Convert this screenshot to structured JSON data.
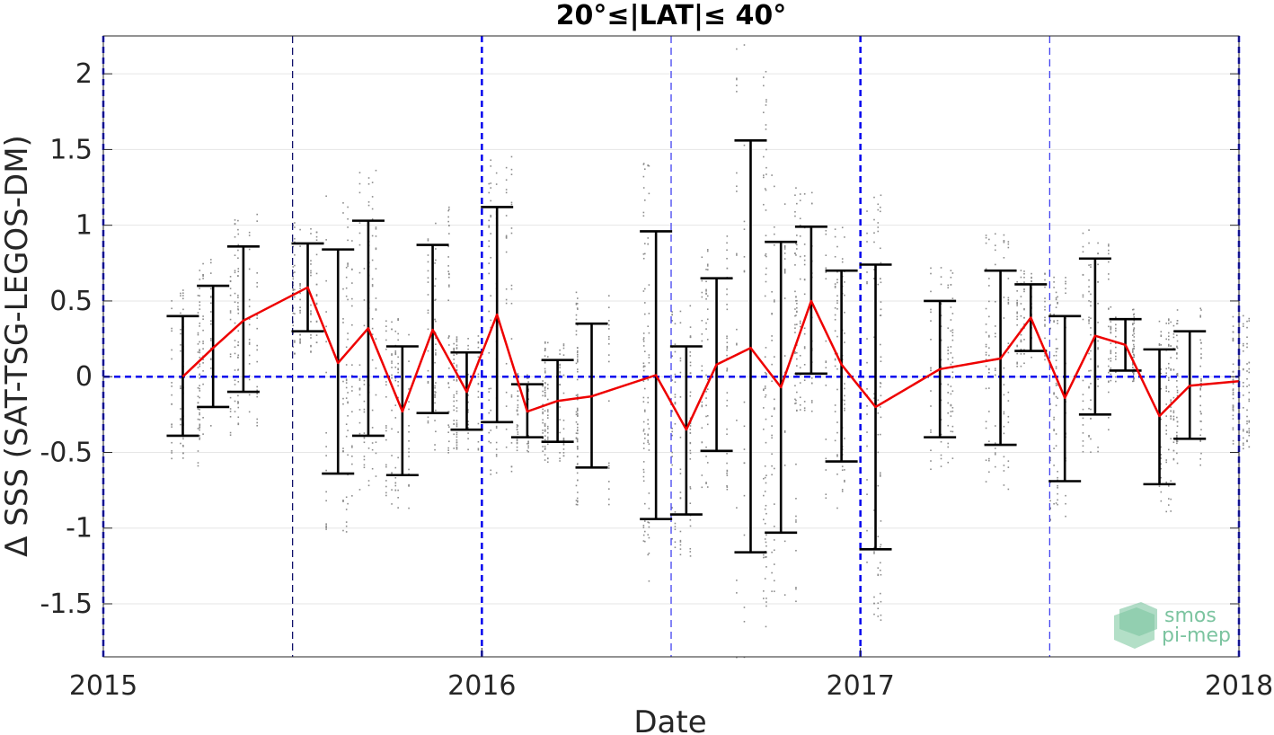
{
  "chart_data": {
    "type": "line",
    "title": "20°≤|LAT|≤ 40°",
    "xlabel": "Date",
    "ylabel": "Δ SSS (SAT-TSG-LEGOS-DM)",
    "xlim": [
      2015.0,
      2018.0
    ],
    "ylim": [
      -1.85,
      2.25
    ],
    "x_ticks": [
      {
        "value": 2015,
        "label": "2015"
      },
      {
        "value": 2016,
        "label": "2016"
      },
      {
        "value": 2017,
        "label": "2017"
      },
      {
        "value": 2018,
        "label": "2018"
      }
    ],
    "y_ticks": [
      {
        "value": 2,
        "label": "2"
      },
      {
        "value": 1.5,
        "label": "1.5"
      },
      {
        "value": 1,
        "label": "1"
      },
      {
        "value": 0.5,
        "label": "0.5"
      },
      {
        "value": 0,
        "label": "0"
      },
      {
        "value": -0.5,
        "label": "-0.5"
      },
      {
        "value": -1,
        "label": "-1"
      },
      {
        "value": -1.5,
        "label": "-1.5"
      }
    ],
    "grid": "horizontal",
    "zero_line": {
      "y": 0,
      "color": "#0000ee",
      "style": "dashed"
    },
    "year_lines": {
      "x": [
        2015.0,
        2016.0,
        2017.0,
        2018.0
      ],
      "color": "#0000ee",
      "style": "dashed"
    },
    "midyear_lines": [
      {
        "x": 2015.5,
        "color": "#000060"
      },
      {
        "x": 2016.5,
        "color": "#3333ee"
      },
      {
        "x": 2017.5,
        "color": "#3333ee"
      }
    ],
    "series": [
      {
        "color": "#ee0000",
        "x": [
          2015.21,
          2015.29,
          2015.37,
          2015.54,
          2015.62,
          2015.7,
          2015.79,
          2015.87,
          2015.96,
          2016.04,
          2016.12,
          2016.2,
          2016.29,
          2016.46,
          2016.54,
          2016.62,
          2016.71,
          2016.79,
          2016.87,
          2016.95,
          2017.04,
          2017.21,
          2017.37,
          2017.45,
          2017.54,
          2017.62,
          2017.7,
          2017.79,
          2017.87,
          2018.0
        ],
        "y": [
          0.0,
          0.19,
          0.37,
          0.59,
          0.09,
          0.32,
          -0.23,
          0.31,
          -0.1,
          0.41,
          -0.23,
          -0.16,
          -0.13,
          0.01,
          -0.35,
          0.08,
          0.19,
          -0.07,
          0.5,
          0.08,
          -0.2,
          0.05,
          0.12,
          0.39,
          -0.14,
          0.27,
          0.21,
          -0.26,
          -0.06,
          -0.03
        ],
        "err_low": [
          -0.39,
          -0.2,
          -0.1,
          0.3,
          -0.64,
          -0.39,
          -0.65,
          -0.24,
          -0.35,
          -0.3,
          -0.4,
          -0.43,
          -0.6,
          -0.94,
          -0.91,
          -0.49,
          -1.16,
          -1.03,
          0.02,
          -0.56,
          -1.14,
          -0.4,
          -0.45,
          0.17,
          -0.69,
          -0.25,
          0.04,
          -0.71,
          -0.41,
          null
        ],
        "err_high": [
          0.4,
          0.6,
          0.86,
          0.88,
          0.84,
          1.03,
          0.2,
          0.87,
          0.16,
          1.12,
          -0.05,
          0.11,
          0.35,
          0.96,
          0.2,
          0.65,
          1.56,
          0.89,
          0.99,
          0.7,
          0.74,
          0.5,
          0.7,
          0.61,
          0.4,
          0.78,
          0.38,
          0.18,
          0.3,
          null
        ]
      }
    ]
  },
  "logo": {
    "line1": "smos",
    "line2": "pi-mep"
  }
}
